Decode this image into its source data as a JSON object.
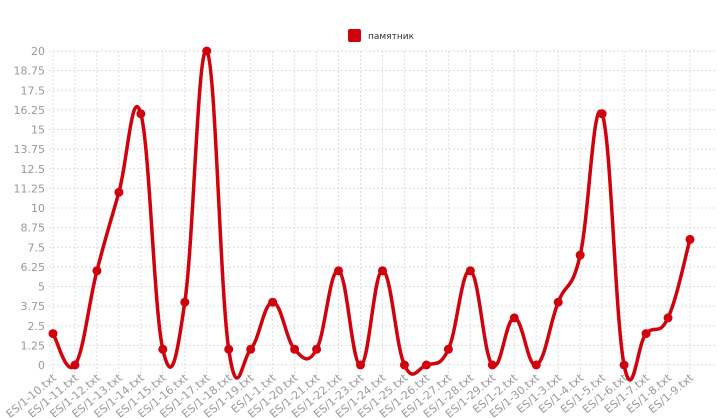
{
  "chart_data": {
    "type": "line",
    "categories": [
      "ES/1-10.txt",
      "ES/1-11.txt",
      "ES/1-12.txt",
      "ES/1-13.txt",
      "ES/1-14.txt",
      "ES/1-15.txt",
      "ES/1-16.txt",
      "ES/1-17.txt",
      "ES/1-18.txt",
      "ES/1-19.txt",
      "ES/1-1.txt",
      "ES/1-20.txt",
      "ES/1-21.txt",
      "ES/1-22.txt",
      "ES/1-23.txt",
      "ES/1-24.txt",
      "ES/1-25.txt",
      "ES/1-26.txt",
      "ES/1-27.txt",
      "ES/1-28.txt",
      "ES/1-29.txt",
      "ES/1-2.txt",
      "ES/1-30.txt",
      "ES/1-3.txt",
      "ES/1-4.txt",
      "ES/1-5.txt",
      "ES/1-6.txt",
      "ES/1-7.txt",
      "ES/1-8.txt",
      "ES/1-9.txt"
    ],
    "series": [
      {
        "name": "памятник",
        "color": "#d0020c",
        "values": [
          2,
          0,
          6,
          11,
          16,
          1,
          4,
          20,
          1,
          1,
          4,
          1,
          1,
          6,
          0,
          6,
          0,
          0,
          1,
          6,
          0,
          3,
          0,
          4,
          7,
          16,
          0,
          2,
          3,
          8
        ]
      }
    ],
    "ylim": [
      0,
      20
    ],
    "yticks": [
      0,
      1.25,
      2.5,
      3.75,
      5,
      6.25,
      7.5,
      8.75,
      10,
      11.25,
      12.5,
      13.75,
      15,
      16.25,
      17.5,
      18.75,
      20
    ],
    "grid": true
  }
}
